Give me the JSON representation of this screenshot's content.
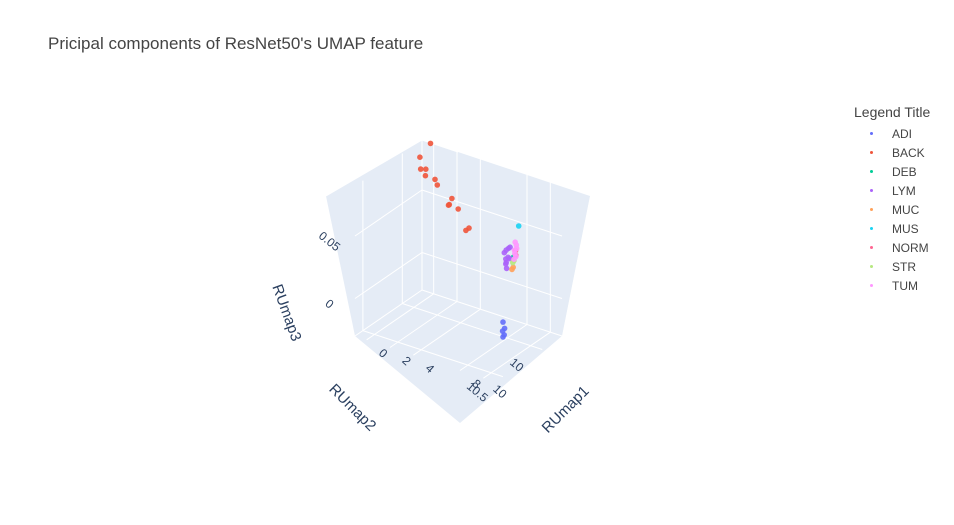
{
  "title": "Pricipal components of ResNet50's UMAP feature",
  "legend_title": "Legend Title",
  "colors": {
    "pane": "#e5ecf6",
    "grid": "#ffffff",
    "axis_text": "#2a3f5f"
  },
  "chart_data": {
    "type": "scatter",
    "title": "Pricipal components of ResNet50's UMAP feature",
    "xlabel": "RUmap1",
    "ylabel": "RUmap2",
    "zlabel": "RUmap3",
    "xlim": [
      -1,
      11
    ],
    "ylim": [
      9.75,
      10.6
    ],
    "zlim": [
      -0.03,
      0.09
    ],
    "x_ticks": [
      0,
      2,
      4,
      8,
      10
    ],
    "y_ticks": [
      10,
      10.5
    ],
    "z_ticks": [
      0,
      0.05
    ],
    "x_tick_labels": [
      "0",
      "2",
      "4",
      "8",
      "10"
    ],
    "y_tick_labels": [
      "10",
      "10.5"
    ],
    "z_tick_labels": [
      "0",
      "0.05"
    ],
    "legend": "top-right",
    "series": [
      {
        "name": "ADI",
        "color": "#636efa",
        "x": [
          10.0,
          10.2,
          10.1,
          10.3,
          10.2
        ],
        "y": [
          10.35,
          10.36,
          10.37,
          10.38,
          10.38
        ],
        "z": [
          0.004,
          0.0,
          -0.002,
          -0.004,
          -0.006
        ]
      },
      {
        "name": "BACK",
        "color": "#ef553b",
        "x": [
          5.8,
          6.0,
          4.2,
          4.6,
          3.5,
          3.3,
          2.0,
          1.6,
          -0.1,
          -0.3,
          0.1,
          0.0,
          0.2
        ],
        "y": [
          10.2,
          10.19,
          10.14,
          10.12,
          10.07,
          10.05,
          10.0,
          9.97,
          9.9,
          9.88,
          9.87,
          9.85,
          9.82
        ],
        "z": [
          0.058,
          0.06,
          0.076,
          0.068,
          0.066,
          0.064,
          0.074,
          0.076,
          0.076,
          0.084,
          0.07,
          0.074,
          0.094
        ]
      },
      {
        "name": "DEB",
        "color": "#00cc96",
        "x": [
          10.5
        ],
        "y": [
          10.29
        ],
        "z": [
          0.055
        ]
      },
      {
        "name": "LYM",
        "color": "#ab63fa",
        "x": [
          10.0,
          9.8,
          10.1,
          9.9,
          10.2,
          10.0,
          9.7,
          10.3,
          9.9,
          10.1
        ],
        "y": [
          10.28,
          10.28,
          10.3,
          10.3,
          10.29,
          10.31,
          10.29,
          10.31,
          10.3,
          10.32
        ],
        "z": [
          0.06,
          0.058,
          0.054,
          0.052,
          0.062,
          0.05,
          0.056,
          0.054,
          0.048,
          0.046
        ]
      },
      {
        "name": "MUC",
        "color": "#ffa15a",
        "x": [
          10.6,
          10.5
        ],
        "y": [
          10.31,
          10.31
        ],
        "z": [
          0.048,
          0.046
        ]
      },
      {
        "name": "MUS",
        "color": "#19d3f3",
        "x": [
          10.6
        ],
        "y": [
          10.24
        ],
        "z": [
          0.078
        ]
      },
      {
        "name": "NORM",
        "color": "#ff6692",
        "x": [
          10.6,
          10.7
        ],
        "y": [
          10.28,
          10.29
        ],
        "z": [
          0.06,
          0.057
        ]
      },
      {
        "name": "STR",
        "color": "#b6e880",
        "x": [
          10.6,
          10.5
        ],
        "y": [
          10.3,
          10.3
        ],
        "z": [
          0.053,
          0.051
        ]
      },
      {
        "name": "TUM",
        "color": "#ff97ff",
        "x": [
          10.5,
          10.6,
          10.7,
          10.5,
          10.6,
          10.7,
          10.6
        ],
        "y": [
          10.27,
          10.27,
          10.28,
          10.28,
          10.29,
          10.29,
          10.3
        ],
        "z": [
          0.066,
          0.064,
          0.062,
          0.06,
          0.058,
          0.056,
          0.054
        ]
      }
    ]
  }
}
